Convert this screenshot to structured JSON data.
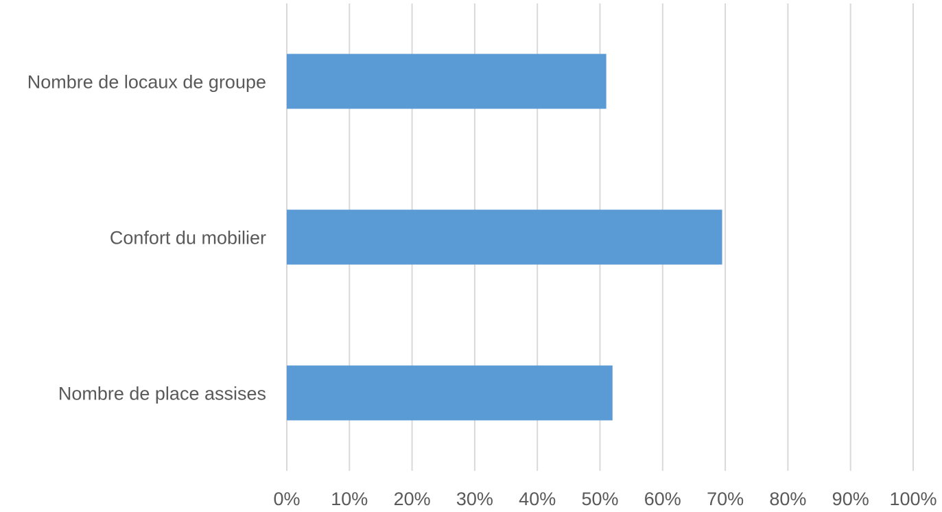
{
  "chart_data": {
    "type": "bar",
    "orientation": "horizontal",
    "categories": [
      "Nombre de locaux de groupe",
      "Confort du mobilier",
      "Nombre de place assises"
    ],
    "values": [
      0.51,
      0.695,
      0.52
    ],
    "x_ticks": [
      "0%",
      "10%",
      "20%",
      "30%",
      "40%",
      "50%",
      "60%",
      "70%",
      "80%",
      "90%",
      "100%"
    ],
    "xlim": [
      0,
      1
    ],
    "grid": true,
    "legend": "none",
    "title": "",
    "xlabel": "",
    "ylabel": "",
    "colors": {
      "bar": "#5b9bd5",
      "grid": "#d9d9d9",
      "text": "#595959"
    }
  }
}
